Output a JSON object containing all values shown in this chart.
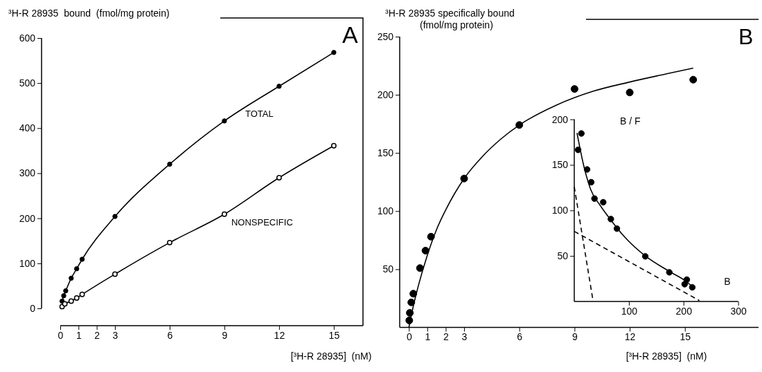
{
  "chart_data": [
    {
      "type": "line",
      "ylabel": "³H-R 28935  bound  (fmol/mg protein)",
      "xlabel": "[³H-R 28935]  (nM)",
      "annotations": [
        "A"
      ],
      "xlim": [
        0,
        16.6
      ],
      "xticks": [
        0,
        1,
        2,
        3,
        6,
        9,
        12,
        15
      ],
      "ylim": [
        0,
        600
      ],
      "yticks": [
        0,
        100,
        200,
        300,
        400,
        500,
        600
      ],
      "series": [
        {
          "name": "TOTAL",
          "color": "#000000",
          "marker": "circle",
          "line_style": "solid",
          "x": [
            0.1,
            0.19,
            0.3,
            0.6,
            0.9,
            1.2,
            3,
            6,
            9,
            12,
            15
          ],
          "values": [
            16,
            28,
            39,
            67,
            88,
            109,
            204,
            320,
            416,
            493,
            568
          ]
        },
        {
          "name": "NONSPECIFIC",
          "color": "#000000",
          "marker": "open-circle",
          "line_style": "solid",
          "x": [
            0.1,
            0.25,
            0.6,
            0.9,
            1.2,
            3,
            6,
            9,
            12,
            15
          ],
          "values": [
            4,
            10,
            16,
            23,
            31,
            76,
            146,
            209,
            290,
            361
          ]
        }
      ]
    },
    {
      "type": "scatter",
      "ylabel": "³H-R 28935 specifically bound (fmol/mg protein)",
      "xlabel": "[³H-R 28935]  (nM)",
      "annotations": [
        "B"
      ],
      "xlim": [
        -0.5,
        19
      ],
      "xticks": [
        0,
        1,
        2,
        3,
        6,
        9,
        12,
        15
      ],
      "ylim": [
        0,
        250
      ],
      "yticks": [
        50,
        100,
        150,
        200,
        250
      ],
      "series": [
        {
          "color": "#000000",
          "marker": "circle",
          "x": [
            0.02,
            0.05,
            0.13,
            0.24,
            0.6,
            0.9,
            1.2,
            3,
            6,
            9,
            12,
            15.45
          ],
          "values": [
            6,
            12.5,
            21.5,
            29,
            51,
            66,
            78,
            128,
            174,
            205,
            202,
            213
          ]
        },
        {
          "type": "line",
          "color": "#000000",
          "marker": "none",
          "line_style": "solid",
          "x": [
            0,
            0.25,
            0.5,
            1,
            1.5,
            2,
            3,
            4,
            5,
            6,
            8,
            10,
            12,
            14,
            15.45
          ],
          "values": [
            0,
            19,
            35,
            62,
            84,
            101,
            128,
            147,
            162,
            174,
            191,
            203,
            211,
            218,
            223
          ]
        }
      ]
    },
    {
      "type": "scatter",
      "ylabel": "B / F",
      "xlabel": "B",
      "xlim": [
        0,
        300
      ],
      "xticks": [
        100,
        200,
        300
      ],
      "ylim": [
        0,
        200
      ],
      "yticks": [
        50,
        100,
        150,
        200
      ],
      "series": [
        {
          "color": "#000000",
          "marker": "circle",
          "x": [
            7,
            13,
            23.5,
            31,
            37,
            53,
            67,
            78,
            130,
            174,
            206,
            202,
            216
          ],
          "values": [
            166.5,
            184.5,
            145,
            131,
            113,
            109,
            90.5,
            80,
            49.5,
            32,
            24,
            19,
            15.5
          ]
        },
        {
          "type": "line",
          "color": "#000000",
          "marker": "none",
          "line_style": "solid",
          "x": [
            5,
            17,
            30,
            48,
            65,
            92,
            130,
            174,
            207,
            220
          ],
          "values": [
            185,
            150,
            123,
            105,
            91,
            71,
            50,
            33,
            21,
            14
          ]
        },
        {
          "type": "line",
          "color": "#000000",
          "marker": "none",
          "line_style": "dashed",
          "x": [
            0,
            34
          ],
          "values": [
            126,
            2
          ]
        },
        {
          "type": "line",
          "color": "#000000",
          "marker": "none",
          "line_style": "dashed",
          "x": [
            0,
            229
          ],
          "values": [
            77,
            1
          ]
        }
      ]
    }
  ]
}
